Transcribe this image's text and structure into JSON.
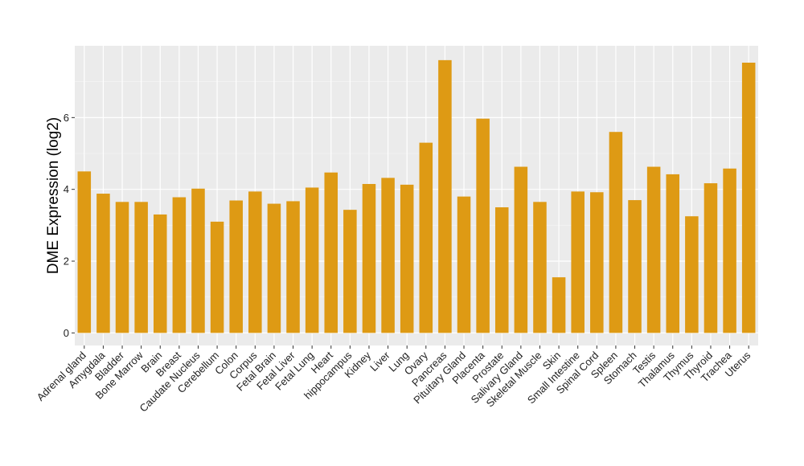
{
  "chart_data": {
    "type": "bar",
    "title": "",
    "xlabel": "",
    "ylabel": "DME Expression (log2)",
    "ylim": [
      -0.35,
      8.0
    ],
    "yticks": [
      0,
      2,
      4,
      6
    ],
    "grid": true,
    "legend": "none",
    "categories": [
      "Adrenal gland",
      "Amygdala",
      "Bladder",
      "Bone Marrow",
      "Brain",
      "Breast",
      "Caudate Nucleus",
      "Cerebellum",
      "Colon",
      "Corpus",
      "Fetal Brain",
      "Fetal Liver",
      "Fetal Lung",
      "Heart",
      "hippocampus",
      "Kidney",
      "Liver",
      "Lung",
      "Ovary",
      "Pancreas",
      "Pituitary Gland",
      "Placenta",
      "Prostate",
      "Salivary Gland",
      "Skeletal Muscle",
      "Skin",
      "Small Intestine",
      "Spinal Cord",
      "Spleen",
      "Stomach",
      "Testis",
      "Thalamus",
      "Thymus",
      "Thyroid",
      "Trachea",
      "Uterus"
    ],
    "values": [
      4.5,
      3.88,
      3.65,
      3.65,
      3.3,
      3.78,
      4.02,
      3.1,
      3.69,
      3.94,
      3.6,
      3.67,
      4.05,
      4.47,
      3.43,
      4.15,
      4.32,
      4.13,
      5.3,
      7.6,
      3.8,
      5.97,
      3.5,
      4.63,
      3.65,
      1.55,
      3.94,
      3.92,
      5.6,
      3.7,
      4.63,
      4.42,
      3.25,
      4.17,
      4.58,
      7.53
    ]
  },
  "colors": {
    "bar": "#de9a14",
    "panel": "#ebebeb",
    "grid_major": "#ffffff",
    "grid_minor": "#f5f5f5"
  }
}
